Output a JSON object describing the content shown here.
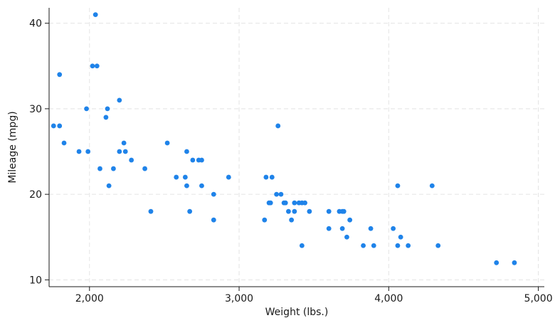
{
  "chart_data": {
    "type": "scatter",
    "title": "",
    "xlabel": "Weight (lbs.)",
    "ylabel": "Mileage (mpg)",
    "xlim": [
      1730,
      5040
    ],
    "ylim": [
      9.2,
      41.8
    ],
    "xticks": [
      2000,
      3000,
      4000,
      5000
    ],
    "xtick_labels": [
      "2,000",
      "3,000",
      "4,000",
      "5,000"
    ],
    "yticks": [
      10,
      20,
      30,
      40
    ],
    "ytick_labels": [
      "10",
      "20",
      "30",
      "40"
    ],
    "grid": true,
    "marker_color": "#1f83e9",
    "points": [
      [
        1760,
        28
      ],
      [
        1800,
        34
      ],
      [
        1800,
        28
      ],
      [
        1830,
        26
      ],
      [
        1930,
        25
      ],
      [
        1980,
        30
      ],
      [
        1990,
        25
      ],
      [
        2020,
        35
      ],
      [
        2040,
        41
      ],
      [
        2050,
        35
      ],
      [
        2070,
        23
      ],
      [
        2110,
        29
      ],
      [
        2120,
        30
      ],
      [
        2130,
        21
      ],
      [
        2160,
        23
      ],
      [
        2200,
        25
      ],
      [
        2200,
        31
      ],
      [
        2230,
        26
      ],
      [
        2240,
        25
      ],
      [
        2280,
        24
      ],
      [
        2370,
        23
      ],
      [
        2410,
        18
      ],
      [
        2520,
        26
      ],
      [
        2580,
        22
      ],
      [
        2640,
        22
      ],
      [
        2650,
        25
      ],
      [
        2650,
        21
      ],
      [
        2670,
        18
      ],
      [
        2690,
        24
      ],
      [
        2730,
        24
      ],
      [
        2750,
        24
      ],
      [
        2750,
        21
      ],
      [
        2830,
        20
      ],
      [
        2830,
        17
      ],
      [
        2930,
        22
      ],
      [
        3170,
        17
      ],
      [
        3180,
        22
      ],
      [
        3200,
        19
      ],
      [
        3210,
        19
      ],
      [
        3220,
        22
      ],
      [
        3250,
        20
      ],
      [
        3260,
        28
      ],
      [
        3280,
        20
      ],
      [
        3300,
        19
      ],
      [
        3310,
        19
      ],
      [
        3330,
        18
      ],
      [
        3350,
        17
      ],
      [
        3370,
        18
      ],
      [
        3370,
        19
      ],
      [
        3400,
        19
      ],
      [
        3420,
        19
      ],
      [
        3420,
        14
      ],
      [
        3440,
        19
      ],
      [
        3470,
        18
      ],
      [
        3600,
        18
      ],
      [
        3600,
        16
      ],
      [
        3670,
        18
      ],
      [
        3690,
        16
      ],
      [
        3690,
        18
      ],
      [
        3700,
        18
      ],
      [
        3720,
        15
      ],
      [
        3740,
        17
      ],
      [
        3830,
        14
      ],
      [
        3880,
        16
      ],
      [
        3900,
        14
      ],
      [
        4030,
        16
      ],
      [
        4060,
        14
      ],
      [
        4060,
        21
      ],
      [
        4080,
        15
      ],
      [
        4130,
        14
      ],
      [
        4290,
        21
      ],
      [
        4330,
        14
      ],
      [
        4720,
        12
      ],
      [
        4840,
        12
      ]
    ]
  }
}
